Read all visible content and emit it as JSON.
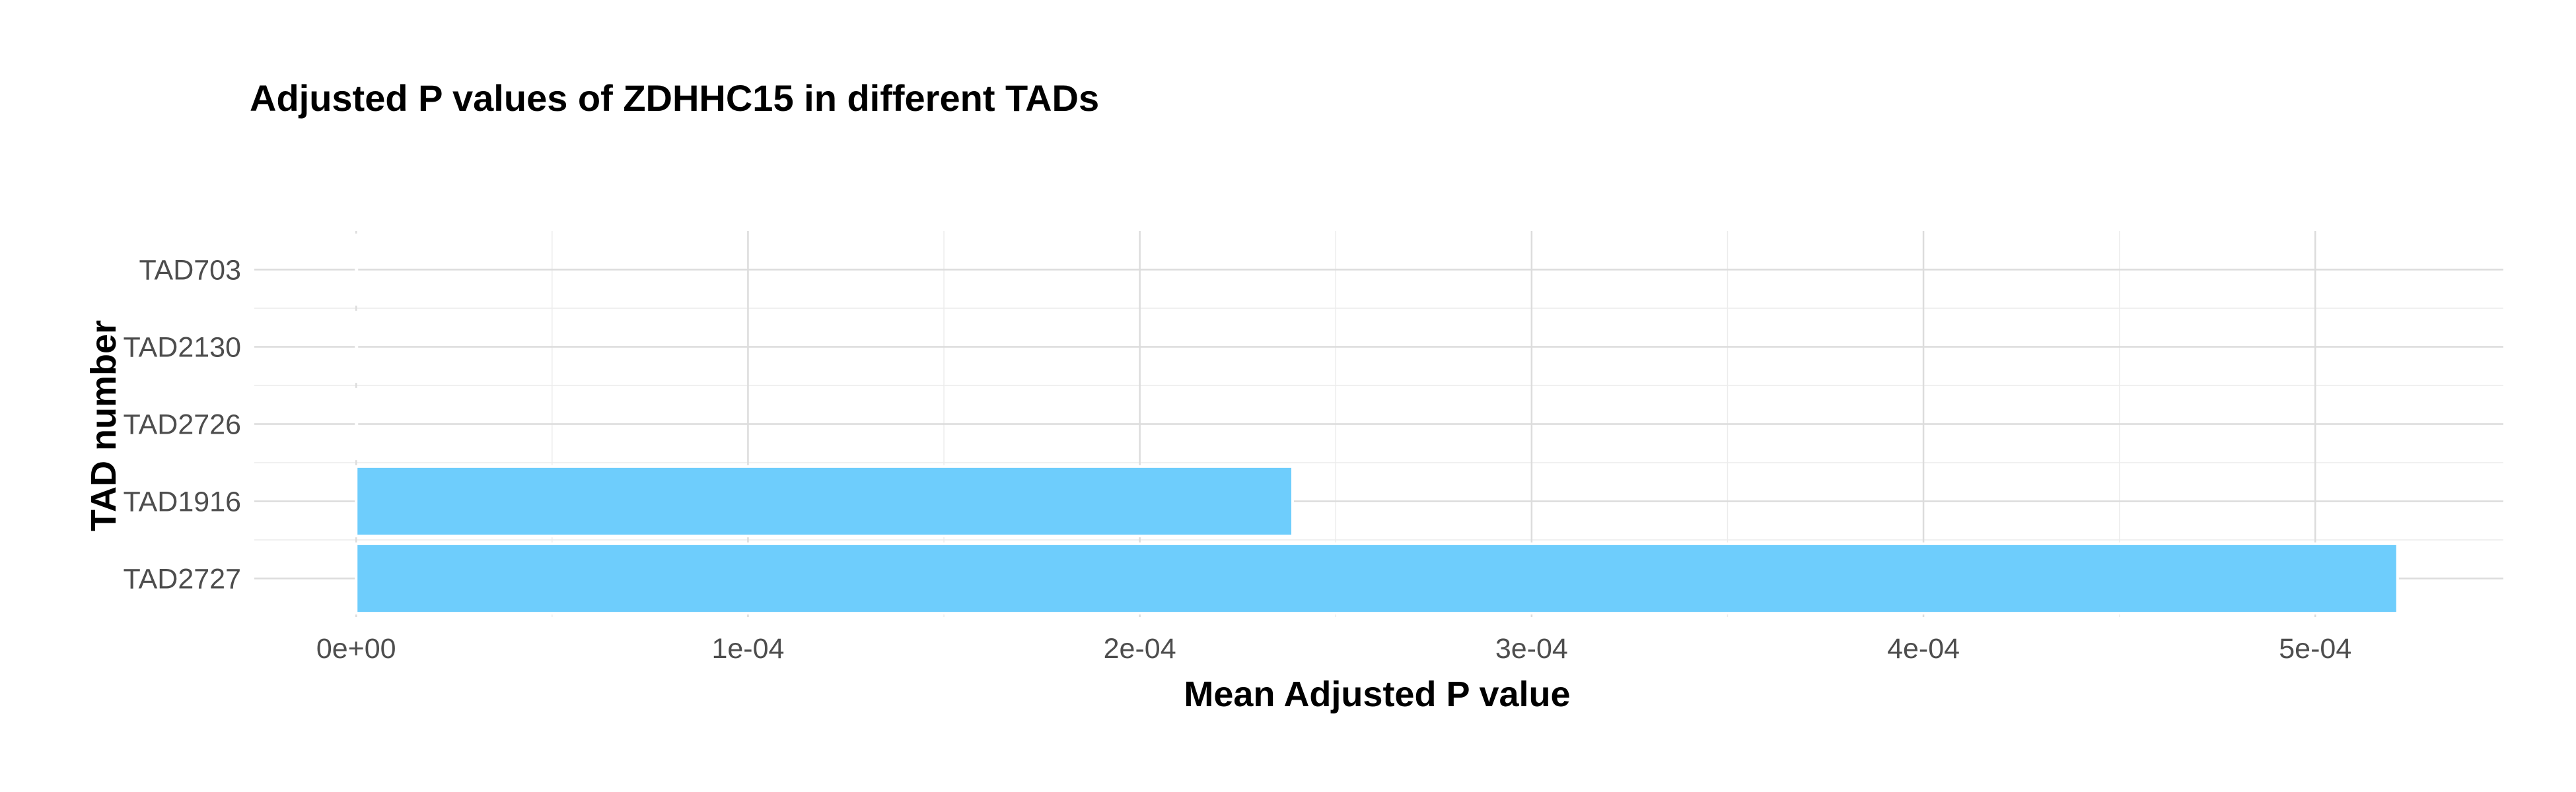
{
  "chart_data": {
    "type": "bar",
    "orientation": "horizontal",
    "title": "Adjusted P values of ZDHHC15 in different TADs",
    "xlabel": "Mean Adjusted P value",
    "ylabel": "TAD number",
    "categories": [
      "TAD2727",
      "TAD1916",
      "TAD2726",
      "TAD2130",
      "TAD703"
    ],
    "values": [
      0.000521,
      0.000239,
      1e-07,
      1e-07,
      1e-07
    ],
    "xlim": [
      -2.6e-05,
      0.000548
    ],
    "xticks": [
      0,
      0.0001,
      0.0002,
      0.0003,
      0.0004,
      0.0005
    ],
    "xtick_labels": [
      "0e+00",
      "1e-04",
      "2e-04",
      "3e-04",
      "4e-04",
      "5e-04"
    ],
    "bar_color": "#6ECDFC",
    "grid": true,
    "legend": "none"
  }
}
